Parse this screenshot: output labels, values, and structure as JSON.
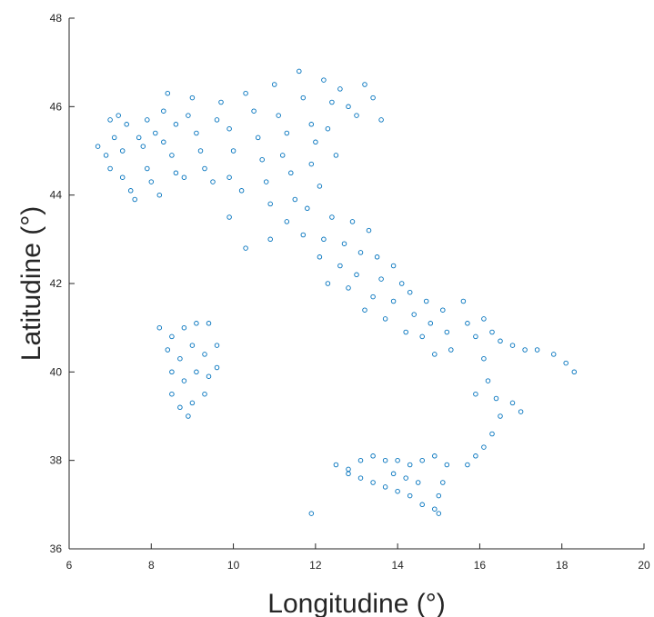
{
  "chart_data": {
    "type": "scatter",
    "xlabel": "Longitudine (°)",
    "ylabel": "Latitudine (°)",
    "xlim": [
      6,
      20
    ],
    "ylim": [
      36,
      48
    ],
    "xticks": [
      "6",
      "8",
      "10",
      "12",
      "14",
      "16",
      "18",
      "20"
    ],
    "yticks": [
      "36",
      "38",
      "40",
      "42",
      "44",
      "46",
      "48"
    ],
    "marker": "open-circle",
    "marker_color": "#0072BD",
    "grid": false,
    "box": false,
    "series": [
      {
        "values": [
          [
            6.7,
            45.1
          ],
          [
            6.9,
            44.9
          ],
          [
            7.0,
            45.7
          ],
          [
            7.2,
            45.8
          ],
          [
            7.4,
            45.6
          ],
          [
            7.1,
            45.3
          ],
          [
            7.3,
            45.0
          ],
          [
            7.0,
            44.6
          ],
          [
            7.3,
            44.4
          ],
          [
            7.5,
            44.1
          ],
          [
            7.6,
            43.9
          ],
          [
            7.7,
            45.3
          ],
          [
            7.9,
            45.7
          ],
          [
            7.8,
            45.1
          ],
          [
            7.9,
            44.6
          ],
          [
            8.0,
            44.3
          ],
          [
            8.2,
            44.0
          ],
          [
            8.1,
            45.4
          ],
          [
            8.3,
            45.9
          ],
          [
            8.4,
            46.3
          ],
          [
            8.3,
            45.2
          ],
          [
            8.5,
            44.9
          ],
          [
            8.6,
            44.5
          ],
          [
            8.8,
            44.4
          ],
          [
            8.6,
            45.6
          ],
          [
            8.9,
            45.8
          ],
          [
            9.0,
            46.2
          ],
          [
            9.1,
            45.4
          ],
          [
            9.2,
            45.0
          ],
          [
            9.3,
            44.6
          ],
          [
            9.5,
            44.3
          ],
          [
            9.6,
            45.7
          ],
          [
            9.7,
            46.1
          ],
          [
            9.9,
            45.5
          ],
          [
            10.0,
            45.0
          ],
          [
            9.9,
            44.4
          ],
          [
            10.2,
            44.1
          ],
          [
            10.3,
            46.3
          ],
          [
            10.5,
            45.9
          ],
          [
            10.6,
            45.3
          ],
          [
            10.7,
            44.8
          ],
          [
            10.8,
            44.3
          ],
          [
            10.9,
            43.8
          ],
          [
            11.0,
            46.5
          ],
          [
            11.1,
            45.8
          ],
          [
            11.3,
            45.4
          ],
          [
            11.2,
            44.9
          ],
          [
            11.4,
            44.5
          ],
          [
            11.5,
            43.9
          ],
          [
            11.3,
            43.4
          ],
          [
            11.6,
            46.8
          ],
          [
            11.7,
            46.2
          ],
          [
            11.9,
            45.6
          ],
          [
            12.0,
            45.2
          ],
          [
            11.9,
            44.7
          ],
          [
            12.1,
            44.2
          ],
          [
            11.8,
            43.7
          ],
          [
            11.7,
            43.1
          ],
          [
            12.2,
            46.6
          ],
          [
            12.4,
            46.1
          ],
          [
            12.3,
            45.5
          ],
          [
            12.5,
            44.9
          ],
          [
            12.4,
            43.5
          ],
          [
            12.2,
            43.0
          ],
          [
            12.1,
            42.6
          ],
          [
            12.6,
            46.4
          ],
          [
            12.8,
            46.0
          ],
          [
            13.0,
            45.8
          ],
          [
            12.9,
            43.4
          ],
          [
            12.7,
            42.9
          ],
          [
            12.6,
            42.4
          ],
          [
            12.3,
            42.0
          ],
          [
            13.2,
            46.5
          ],
          [
            13.4,
            46.2
          ],
          [
            13.6,
            45.7
          ],
          [
            13.3,
            43.2
          ],
          [
            13.1,
            42.7
          ],
          [
            13.0,
            42.2
          ],
          [
            12.8,
            41.9
          ],
          [
            13.5,
            42.6
          ],
          [
            13.6,
            42.1
          ],
          [
            13.4,
            41.7
          ],
          [
            13.2,
            41.4
          ],
          [
            13.9,
            42.4
          ],
          [
            14.1,
            42.0
          ],
          [
            13.9,
            41.6
          ],
          [
            13.7,
            41.2
          ],
          [
            14.3,
            41.8
          ],
          [
            14.4,
            41.3
          ],
          [
            14.2,
            40.9
          ],
          [
            14.7,
            41.6
          ],
          [
            14.8,
            41.1
          ],
          [
            14.6,
            40.8
          ],
          [
            14.9,
            40.4
          ],
          [
            15.1,
            41.4
          ],
          [
            15.2,
            40.9
          ],
          [
            15.3,
            40.5
          ],
          [
            15.6,
            41.6
          ],
          [
            15.7,
            41.1
          ],
          [
            15.9,
            40.8
          ],
          [
            16.1,
            41.2
          ],
          [
            16.3,
            40.9
          ],
          [
            16.5,
            40.7
          ],
          [
            16.8,
            40.6
          ],
          [
            17.1,
            40.5
          ],
          [
            17.4,
            40.5
          ],
          [
            17.8,
            40.4
          ],
          [
            18.1,
            40.2
          ],
          [
            18.3,
            40.0
          ],
          [
            16.1,
            40.3
          ],
          [
            16.2,
            39.8
          ],
          [
            16.4,
            39.4
          ],
          [
            16.5,
            39.0
          ],
          [
            16.3,
            38.6
          ],
          [
            16.1,
            38.3
          ],
          [
            15.9,
            38.1
          ],
          [
            15.7,
            37.9
          ],
          [
            16.8,
            39.3
          ],
          [
            17.0,
            39.1
          ],
          [
            15.9,
            39.5
          ],
          [
            12.5,
            37.9
          ],
          [
            12.8,
            37.8
          ],
          [
            13.1,
            38.0
          ],
          [
            13.4,
            38.1
          ],
          [
            13.7,
            38.0
          ],
          [
            14.0,
            38.0
          ],
          [
            14.3,
            37.9
          ],
          [
            14.6,
            38.0
          ],
          [
            14.9,
            38.1
          ],
          [
            15.2,
            37.9
          ],
          [
            15.1,
            37.5
          ],
          [
            15.0,
            37.2
          ],
          [
            14.9,
            36.9
          ],
          [
            14.6,
            37.0
          ],
          [
            14.3,
            37.2
          ],
          [
            14.0,
            37.3
          ],
          [
            13.7,
            37.4
          ],
          [
            13.4,
            37.5
          ],
          [
            13.1,
            37.6
          ],
          [
            12.8,
            37.7
          ],
          [
            14.5,
            37.5
          ],
          [
            14.2,
            37.6
          ],
          [
            13.9,
            37.7
          ],
          [
            15.0,
            36.8
          ],
          [
            8.2,
            41.0
          ],
          [
            8.5,
            40.8
          ],
          [
            8.8,
            41.0
          ],
          [
            9.1,
            41.1
          ],
          [
            9.4,
            41.1
          ],
          [
            8.4,
            40.5
          ],
          [
            8.7,
            40.3
          ],
          [
            9.0,
            40.6
          ],
          [
            9.3,
            40.4
          ],
          [
            9.6,
            40.6
          ],
          [
            8.5,
            40.0
          ],
          [
            8.8,
            39.8
          ],
          [
            9.1,
            40.0
          ],
          [
            9.4,
            39.9
          ],
          [
            9.6,
            40.1
          ],
          [
            8.5,
            39.5
          ],
          [
            8.7,
            39.2
          ],
          [
            9.0,
            39.3
          ],
          [
            9.3,
            39.5
          ],
          [
            8.9,
            39.0
          ],
          [
            11.9,
            36.8
          ],
          [
            10.3,
            42.8
          ],
          [
            9.9,
            43.5
          ],
          [
            10.9,
            43.0
          ]
        ]
      }
    ]
  }
}
